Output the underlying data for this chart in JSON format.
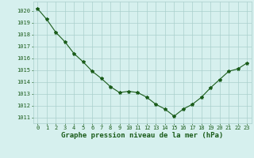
{
  "x": [
    0,
    1,
    2,
    3,
    4,
    5,
    6,
    7,
    8,
    9,
    10,
    11,
    12,
    13,
    14,
    15,
    16,
    17,
    18,
    19,
    20,
    21,
    22,
    23
  ],
  "y": [
    1020.2,
    1019.3,
    1018.2,
    1017.4,
    1016.4,
    1015.7,
    1014.9,
    1014.3,
    1013.6,
    1013.1,
    1013.2,
    1013.1,
    1012.7,
    1012.1,
    1011.7,
    1011.1,
    1011.7,
    1012.1,
    1012.7,
    1013.5,
    1014.2,
    1014.9,
    1015.1,
    1015.6
  ],
  "line_color": "#1a5c1a",
  "marker": "*",
  "bg_color": "#d6f0ee",
  "grid_color": "#aacfcc",
  "xlabel": "Graphe pression niveau de la mer (hPa)",
  "ylabel_ticks": [
    1011,
    1012,
    1013,
    1014,
    1015,
    1016,
    1017,
    1018,
    1019,
    1020
  ],
  "ylim": [
    1010.5,
    1020.8
  ],
  "xlim": [
    -0.5,
    23.5
  ],
  "xtick_labels": [
    "0",
    "1",
    "2",
    "3",
    "4",
    "5",
    "6",
    "7",
    "8",
    "9",
    "10",
    "11",
    "12",
    "13",
    "14",
    "15",
    "16",
    "17",
    "18",
    "19",
    "20",
    "21",
    "22",
    "23"
  ],
  "tick_fontsize": 5.0,
  "xlabel_fontsize": 6.5,
  "label_color": "#1a5c1a",
  "linewidth": 0.8,
  "markersize": 3.0
}
